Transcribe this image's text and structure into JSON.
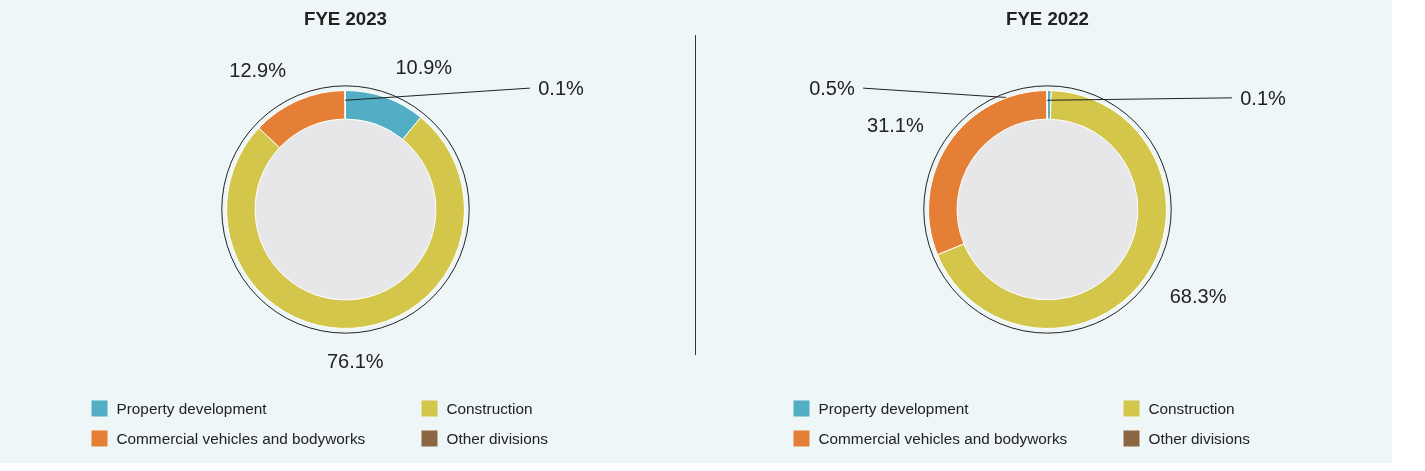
{
  "chart_data": [
    {
      "type": "donut",
      "title": "FYE 2023",
      "categories": [
        "Property development",
        "Construction",
        "Commercial vehicles and bodyworks",
        "Other divisions"
      ],
      "values": [
        10.9,
        76.1,
        12.9,
        0.1
      ],
      "colors": [
        "#52aec5",
        "#d4c54b",
        "#e57f35",
        "#8c6643"
      ],
      "value_labels": [
        "10.9%",
        "76.1%",
        "12.9%",
        "0.1%"
      ],
      "legend": "bottom"
    },
    {
      "type": "donut",
      "title": "FYE 2022",
      "categories": [
        "Property development",
        "Construction",
        "Commercial vehicles and bodyworks",
        "Other divisions"
      ],
      "values": [
        0.5,
        68.3,
        31.1,
        0.1
      ],
      "colors": [
        "#52aec5",
        "#d4c54b",
        "#e57f35",
        "#8c6643"
      ],
      "value_labels": [
        "0.5%",
        "68.3%",
        "31.1%",
        "0.1%"
      ],
      "legend": "bottom"
    }
  ]
}
